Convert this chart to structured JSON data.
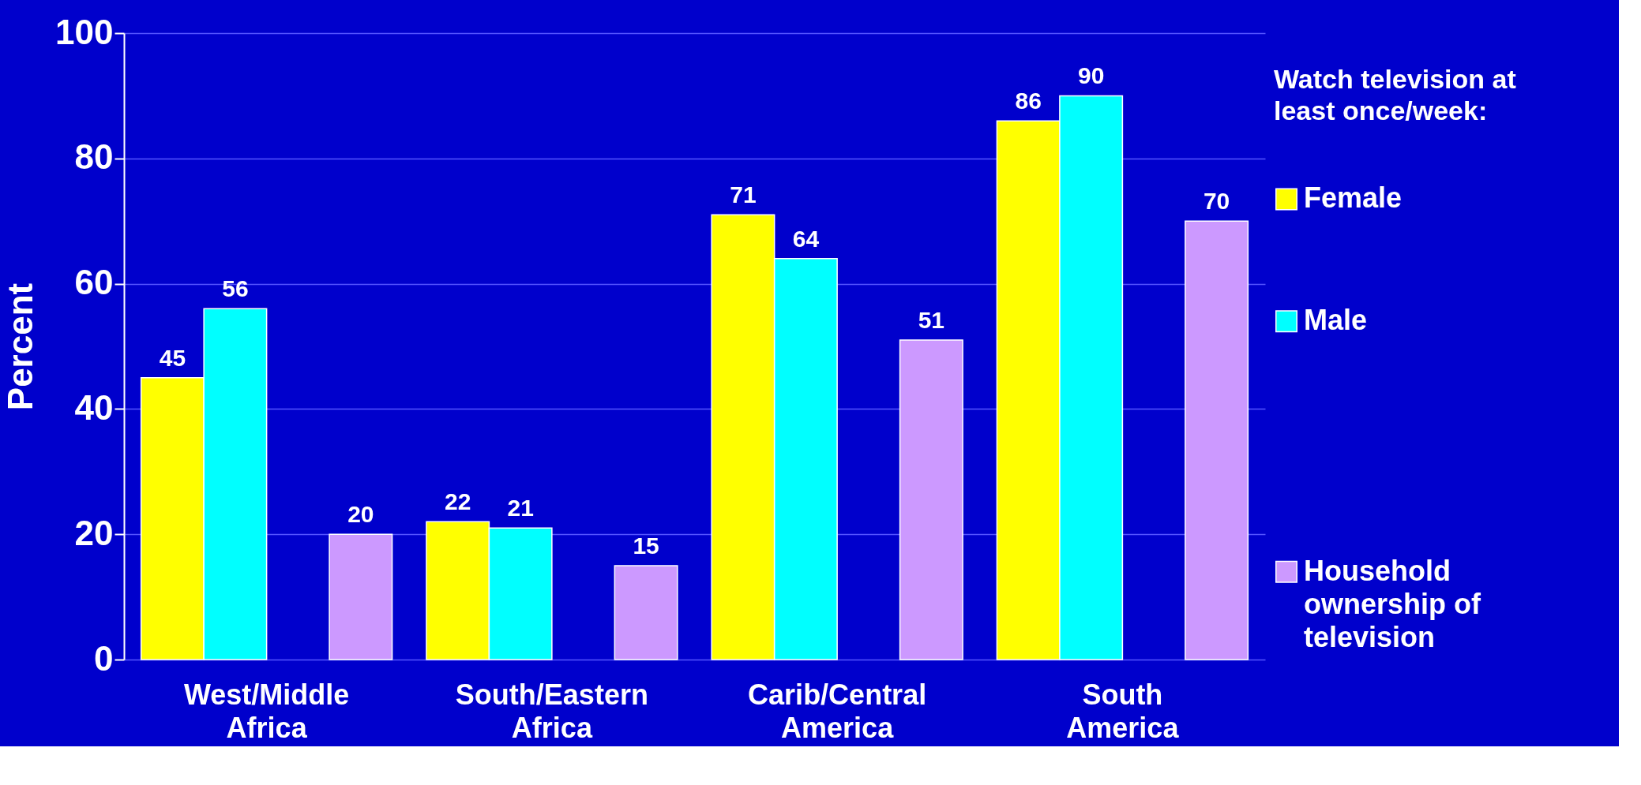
{
  "chart_data": {
    "type": "bar",
    "ylabel": "Percent",
    "legend_title": "Watch television at least once/week:",
    "categories": [
      "West/Middle Africa",
      "South/Eastern Africa",
      "Carib/Central America",
      "South America"
    ],
    "series": [
      {
        "name": "Female",
        "color": "#ffff00",
        "values": [
          45,
          22,
          71,
          86
        ]
      },
      {
        "name": "Male",
        "color": "#00ffff",
        "values": [
          56,
          21,
          64,
          90
        ]
      },
      {
        "name": "Household ownership of television",
        "color": "#cc99ff",
        "values": [
          20,
          15,
          51,
          70
        ]
      }
    ],
    "ylim": [
      0,
      100
    ],
    "yticks": [
      0,
      20,
      40,
      60,
      80,
      100
    ],
    "grid": "y",
    "data_labels": true,
    "legend": "right"
  }
}
